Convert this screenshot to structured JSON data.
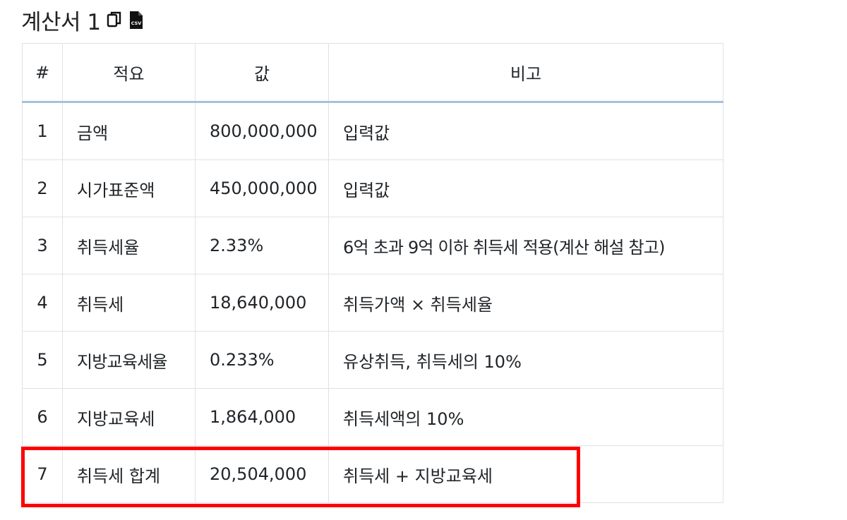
{
  "header": {
    "title": "계산서 1",
    "copy_icon": "copy-icon",
    "csv_icon": "csv-file-icon",
    "csv_label": "CSV"
  },
  "table": {
    "columns": [
      "#",
      "적요",
      "값",
      "비고"
    ],
    "rows": [
      {
        "num": "1",
        "item": "금액",
        "value": "800,000,000",
        "note": "입력값"
      },
      {
        "num": "2",
        "item": "시가표준액",
        "value": "450,000,000",
        "note": "입력값"
      },
      {
        "num": "3",
        "item": "취득세율",
        "value": "2.33%",
        "note": "6억 초과 9억 이하 취득세 적용(계산 해설 참고)"
      },
      {
        "num": "4",
        "item": "취득세",
        "value": "18,640,000",
        "note": "취득가액 × 취득세율"
      },
      {
        "num": "5",
        "item": "지방교육세율",
        "value": "0.233%",
        "note": "유상취득, 취득세의 10%"
      },
      {
        "num": "6",
        "item": "지방교육세",
        "value": "1,864,000",
        "note": "취득세액의 10%"
      },
      {
        "num": "7",
        "item": "취득세 합계",
        "value": "20,504,000",
        "note": "취득세 + 지방교육세"
      }
    ]
  },
  "highlight": {
    "color": "#ff0000",
    "target_row": "7"
  }
}
